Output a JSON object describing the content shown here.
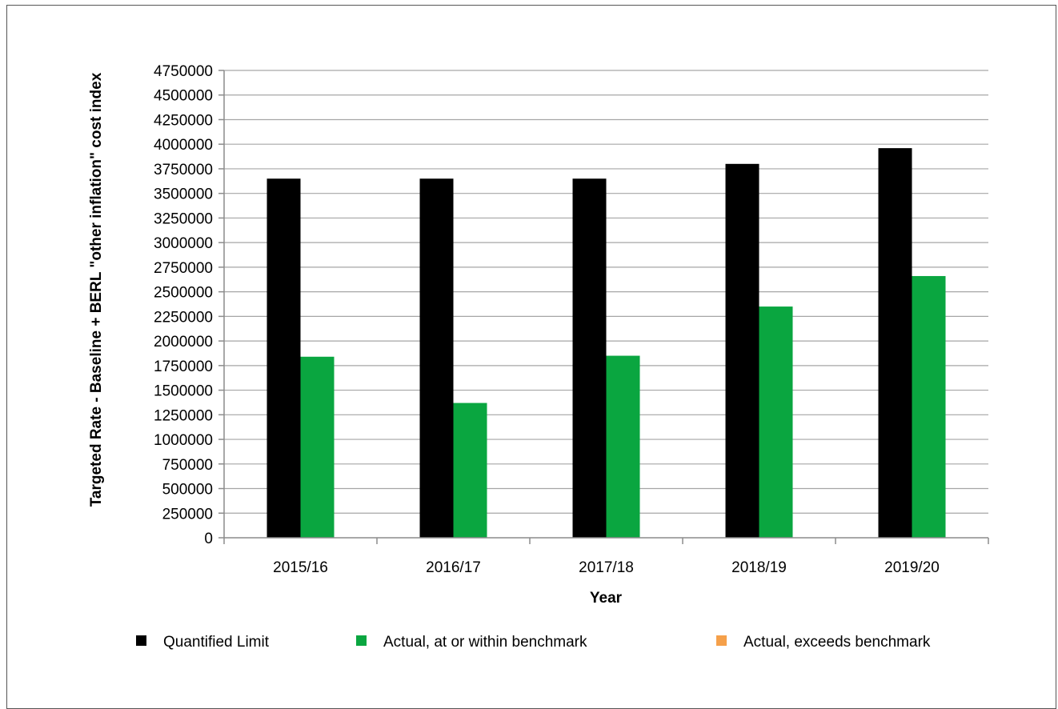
{
  "chart_data": {
    "type": "bar",
    "title": "",
    "xlabel": "Year",
    "ylabel": "Targeted Rate - Baseline + BERL \"other inflation\" cost index",
    "categories": [
      "2015/16",
      "2016/17",
      "2017/18",
      "2018/19",
      "2019/20"
    ],
    "ylim": [
      0,
      4750000
    ],
    "ytick_step": 250000,
    "grid": true,
    "legend_position": "bottom",
    "series": [
      {
        "name": "Quantified Limit",
        "color": "#000000",
        "values": [
          3650000,
          3650000,
          3650000,
          3800000,
          3960000
        ]
      },
      {
        "name": "Actual, at or within benchmark",
        "color": "#0aa640",
        "values": [
          1840000,
          1370000,
          1850000,
          2350000,
          2660000
        ]
      },
      {
        "name": "Actual, exceeds benchmark",
        "color": "#f5a04a",
        "values": [
          0,
          0,
          0,
          0,
          0
        ]
      }
    ]
  }
}
